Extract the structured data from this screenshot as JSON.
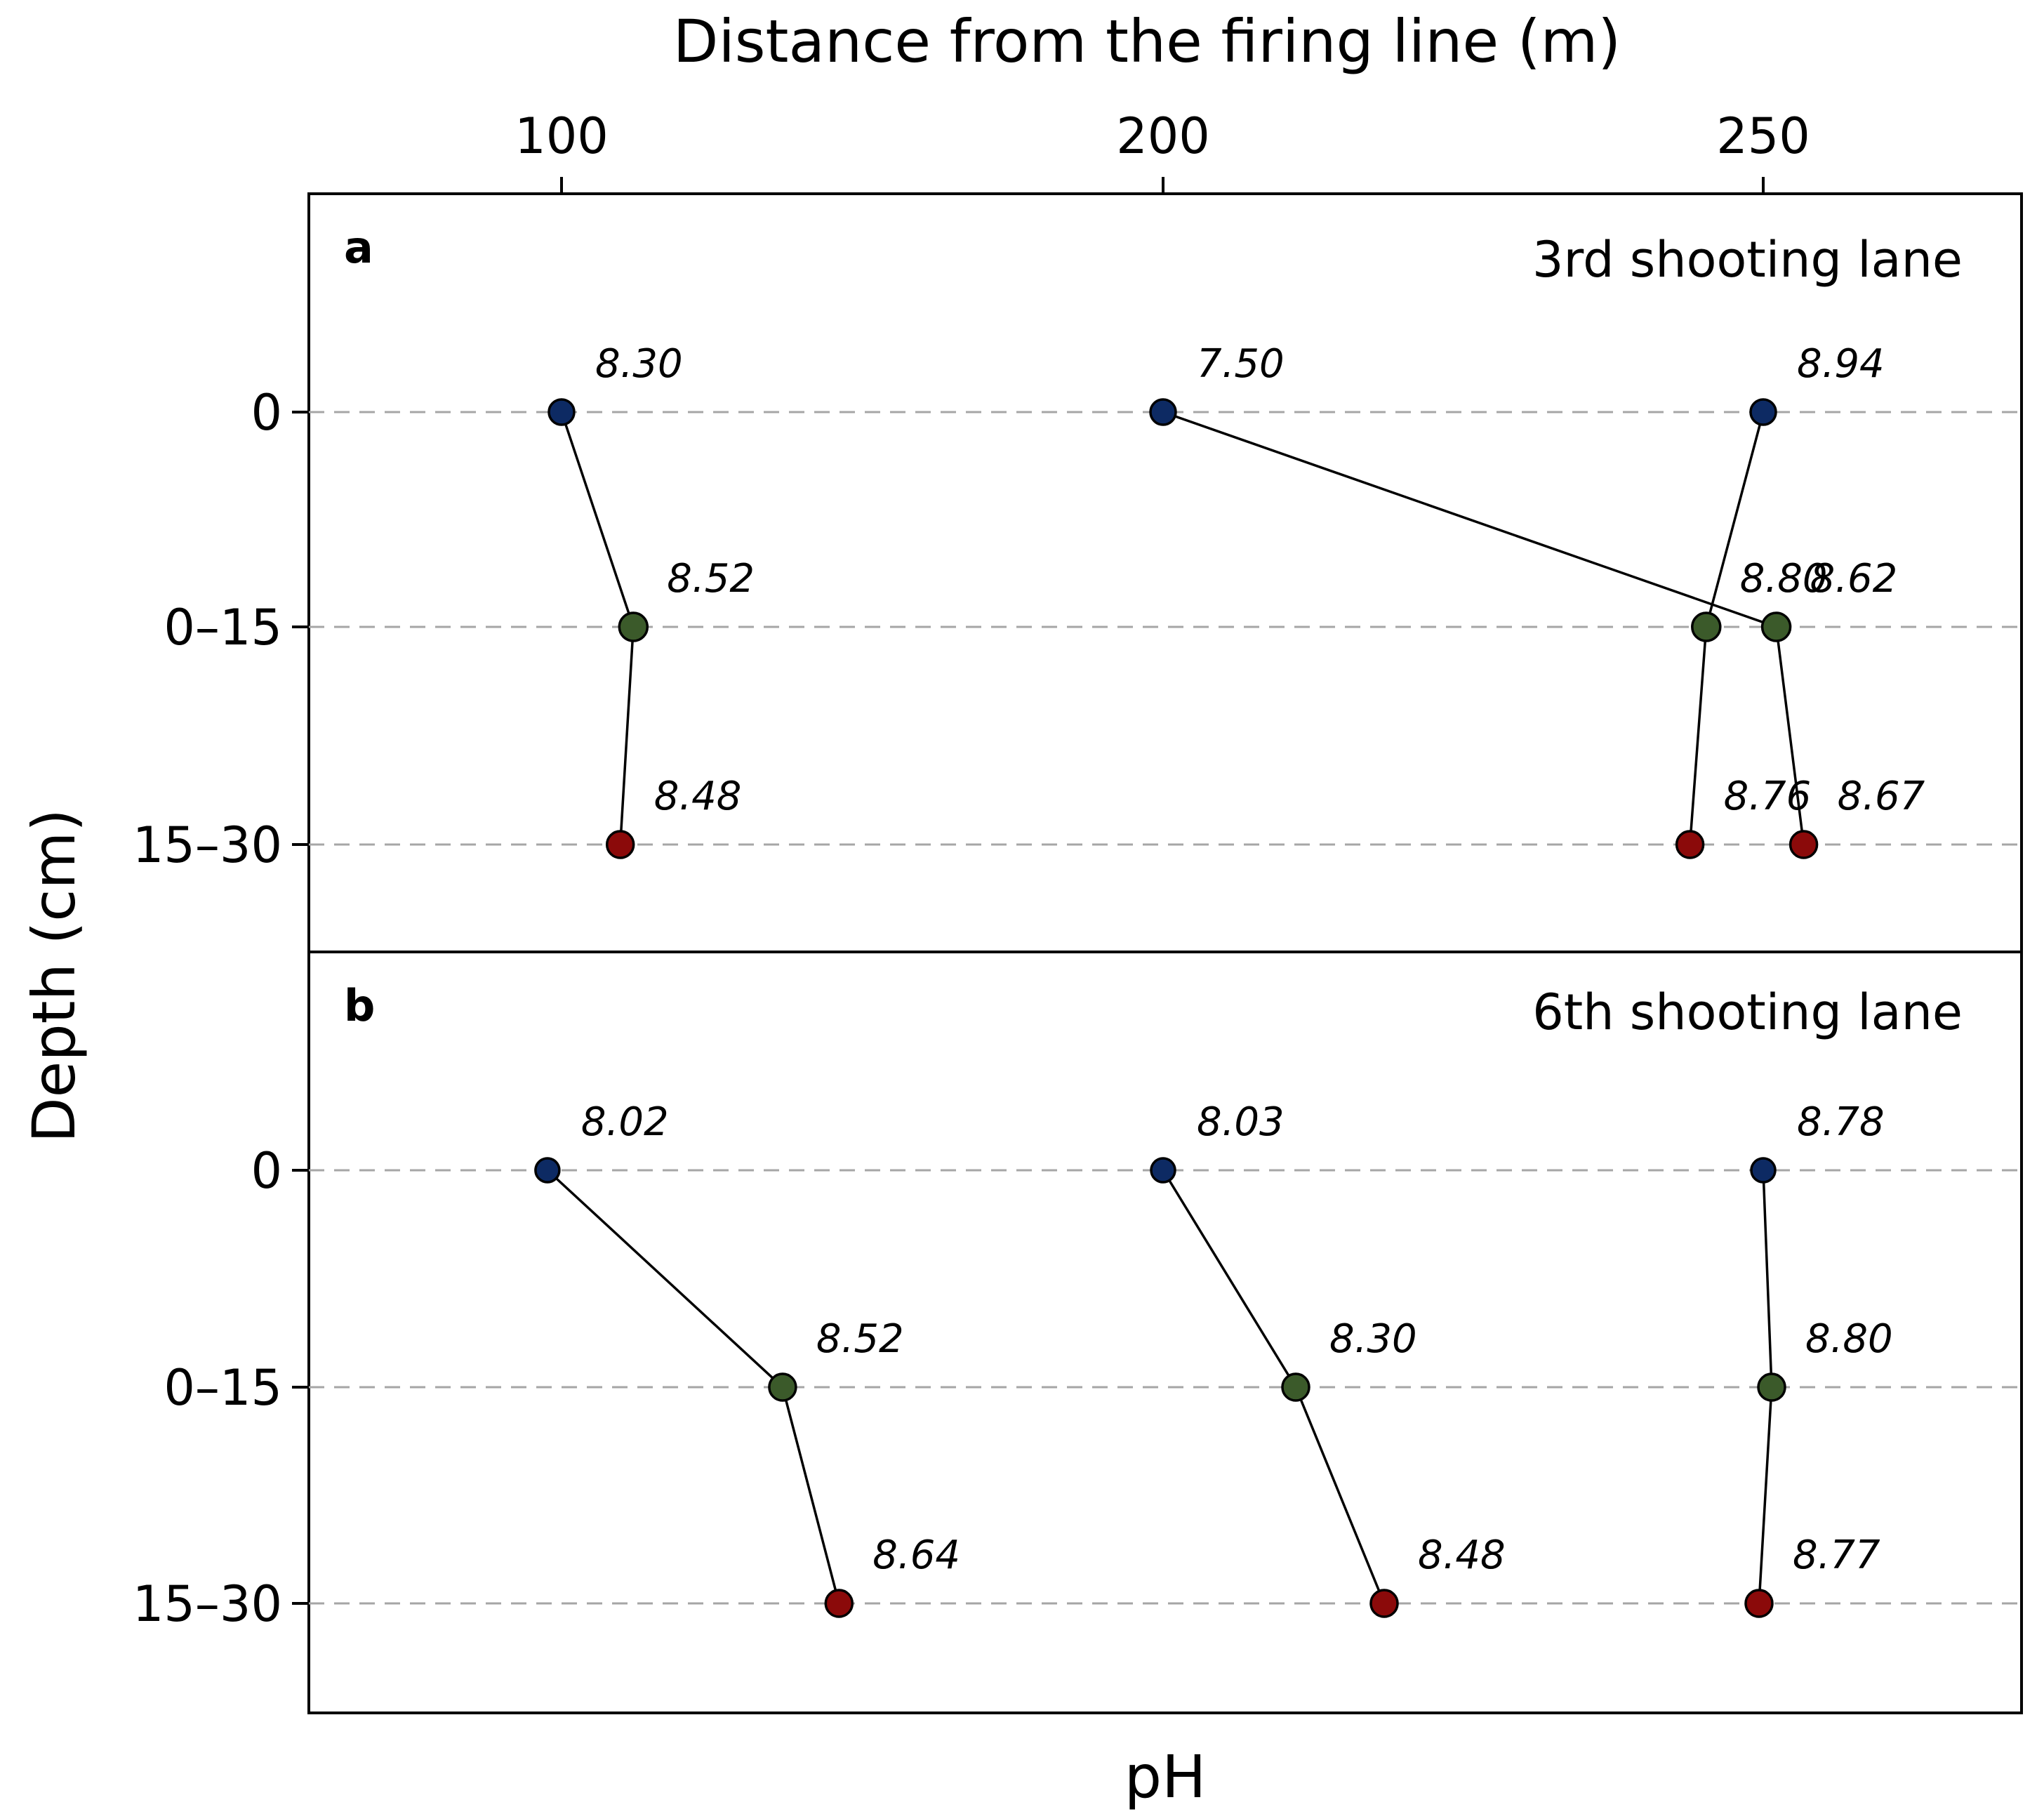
{
  "chart_data": {
    "type": "line",
    "title_top": "Distance from the firing line (m)",
    "xlabel": "pH",
    "ylabel": "Depth (cm)",
    "x_ticks": [
      "100",
      "200",
      "250"
    ],
    "depth_categories": [
      "0",
      "0–15",
      "15–30"
    ],
    "colors": {
      "depth_0": "#0d2a63",
      "depth_0_15": "#3b5a2a",
      "depth_15_30": "#8b0a0a",
      "grid": "#a6a6a6"
    },
    "panels": [
      {
        "letter": "a",
        "title": "3rd shooting lane",
        "series": [
          {
            "distance": "100",
            "labels": [
              "8.30",
              "8.52",
              "8.48"
            ],
            "ph": [
              8.3,
              8.52,
              8.48
            ]
          },
          {
            "distance": "200",
            "labels": [
              "7.50",
              "8.62",
              "8.67"
            ],
            "ph": [
              7.5,
              8.62,
              8.67
            ]
          },
          {
            "distance": "250",
            "labels": [
              "8.94",
              "8.80",
              "8.76"
            ],
            "ph": [
              8.94,
              8.8,
              8.76
            ]
          }
        ]
      },
      {
        "letter": "b",
        "title": "6th shooting lane",
        "series": [
          {
            "distance": "100",
            "labels": [
              "8.02",
              "8.52",
              "8.64"
            ],
            "ph": [
              8.02,
              8.52,
              8.64
            ]
          },
          {
            "distance": "200",
            "labels": [
              "8.03",
              "8.30",
              "8.48"
            ],
            "ph": [
              8.03,
              8.3,
              8.48
            ]
          },
          {
            "distance": "250",
            "labels": [
              "8.78",
              "8.80",
              "8.77"
            ],
            "ph": [
              8.78,
              8.8,
              8.77
            ]
          }
        ]
      }
    ]
  }
}
